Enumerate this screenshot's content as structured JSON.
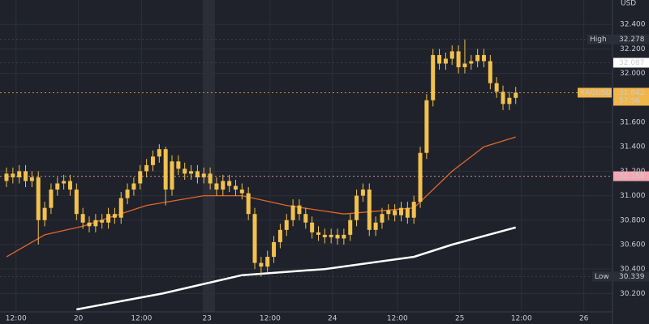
{
  "chart_data": {
    "type": "candlestick",
    "axis_unit": "USD",
    "candle_color": "#f2c14e",
    "xlim": [
      -1.02,
      95.2
    ],
    "ylim": [
      30.05,
      32.6
    ],
    "grid": true,
    "xticks": [
      {
        "value": 1.5,
        "label": "12:00"
      },
      {
        "value": 11.3,
        "label": "20"
      },
      {
        "value": 21.2,
        "label": "12:00"
      },
      {
        "value": 31.5,
        "label": "23"
      },
      {
        "value": 41.4,
        "label": "12:00"
      },
      {
        "value": 51.2,
        "label": "24"
      },
      {
        "value": 61.4,
        "label": "12:00"
      },
      {
        "value": 71.2,
        "label": "25"
      },
      {
        "value": 80.9,
        "label": "12:00"
      },
      {
        "value": 90.7,
        "label": "26"
      }
    ],
    "yticks": [
      {
        "value": 30.2,
        "label": "30.200"
      },
      {
        "value": 30.4,
        "label": "30.400"
      },
      {
        "value": 30.6,
        "label": "30.600"
      },
      {
        "value": 30.8,
        "label": "30.800"
      },
      {
        "value": 31.0,
        "label": "31.000"
      },
      {
        "value": 31.2,
        "label": "31.200"
      },
      {
        "value": 31.4,
        "label": "31.400"
      },
      {
        "value": 31.6,
        "label": "31.600"
      },
      {
        "value": 32.0,
        "label": "32.000"
      },
      {
        "value": 32.2,
        "label": "32.200"
      },
      {
        "value": 32.4,
        "label": "32.400"
      }
    ],
    "open": [
      31.12,
      31.18,
      31.15,
      31.2,
      31.12,
      31.15,
      30.8,
      30.9,
      31.05,
      31.1,
      31.12,
      31.05,
      30.85,
      30.78,
      30.75,
      30.8,
      30.78,
      30.85,
      30.82,
      30.98,
      31.05,
      31.1,
      31.2,
      31.25,
      31.32,
      31.38,
      31.05,
      31.28,
      31.22,
      31.18,
      31.2,
      31.15,
      31.18,
      31.1,
      31.05,
      31.12,
      31.08,
      31.05,
      31.02,
      30.85,
      30.45,
      30.42,
      30.5,
      30.62,
      30.72,
      30.8,
      30.92,
      30.85,
      30.78,
      30.7,
      30.68,
      30.66,
      30.68,
      30.65,
      30.68,
      30.8,
      31.0,
      31.05,
      30.72,
      30.78,
      30.85,
      30.88,
      30.84,
      30.9,
      30.82,
      30.95,
      31.35,
      31.78,
      32.15,
      32.08,
      32.12,
      32.18,
      32.05,
      32.08,
      32.1,
      32.15,
      32.1,
      31.92,
      31.85,
      31.75,
      31.8
    ],
    "high": [
      31.23,
      31.23,
      31.25,
      31.25,
      31.2,
      31.2,
      30.95,
      31.1,
      31.15,
      31.17,
      31.17,
      31.1,
      30.9,
      30.83,
      30.85,
      30.85,
      30.9,
      30.9,
      31.03,
      31.1,
      31.15,
      31.25,
      31.3,
      31.37,
      31.42,
      31.4,
      31.33,
      31.33,
      31.27,
      31.25,
      31.25,
      31.23,
      31.23,
      31.15,
      31.17,
      31.17,
      31.13,
      31.1,
      31.07,
      30.9,
      30.5,
      30.55,
      30.67,
      30.77,
      30.85,
      30.97,
      30.97,
      30.9,
      30.83,
      30.75,
      30.73,
      30.73,
      30.73,
      30.73,
      30.85,
      31.05,
      31.1,
      31.1,
      30.83,
      30.9,
      30.93,
      30.93,
      30.95,
      30.95,
      31.0,
      31.4,
      31.83,
      32.2,
      32.2,
      32.17,
      32.23,
      32.23,
      32.278,
      32.15,
      32.2,
      32.2,
      32.15,
      31.97,
      31.9,
      31.85,
      31.89
    ],
    "low": [
      31.07,
      31.1,
      31.1,
      31.07,
      31.07,
      30.6,
      30.75,
      30.85,
      31.0,
      31.05,
      31.0,
      30.8,
      30.73,
      30.7,
      30.7,
      30.73,
      30.73,
      30.77,
      30.77,
      30.93,
      31.0,
      31.05,
      31.15,
      31.2,
      31.27,
      30.92,
      31.0,
      31.17,
      31.13,
      31.13,
      31.1,
      31.1,
      31.05,
      31.0,
      31.0,
      31.03,
      31.0,
      30.97,
      30.8,
      30.4,
      30.339,
      30.37,
      30.45,
      30.57,
      30.67,
      30.75,
      30.8,
      30.73,
      30.65,
      30.63,
      30.61,
      30.61,
      30.6,
      30.6,
      30.63,
      30.75,
      30.95,
      30.67,
      30.67,
      30.73,
      30.8,
      30.79,
      30.79,
      30.77,
      30.77,
      30.9,
      31.3,
      31.73,
      32.03,
      32.03,
      32.07,
      32.0,
      32.0,
      32.03,
      32.05,
      32.05,
      31.87,
      31.8,
      31.7,
      31.7,
      31.75
    ],
    "close": [
      31.18,
      31.15,
      31.2,
      31.12,
      31.15,
      30.8,
      30.9,
      31.05,
      31.1,
      31.12,
      31.05,
      30.85,
      30.78,
      30.75,
      30.8,
      30.78,
      30.85,
      30.82,
      30.98,
      31.05,
      31.1,
      31.2,
      31.25,
      31.32,
      31.38,
      31.05,
      31.28,
      31.22,
      31.18,
      31.2,
      31.15,
      31.18,
      31.1,
      31.05,
      31.12,
      31.08,
      31.05,
      31.02,
      30.85,
      30.45,
      30.42,
      30.5,
      30.62,
      30.72,
      30.8,
      30.92,
      30.85,
      30.78,
      30.7,
      30.68,
      30.66,
      30.68,
      30.65,
      30.68,
      30.8,
      31.0,
      31.05,
      30.72,
      30.78,
      30.85,
      30.88,
      30.84,
      30.9,
      30.82,
      30.95,
      31.35,
      31.78,
      32.15,
      32.08,
      32.12,
      32.18,
      32.05,
      32.08,
      32.1,
      32.15,
      32.1,
      31.92,
      31.85,
      31.75,
      31.8,
      31.842
    ],
    "moving_averages": [
      {
        "color": "#e0662a",
        "x": [
          0,
          6,
          12,
          22,
          31,
          37,
          44,
          53,
          64,
          70,
          75,
          80
        ],
        "values": [
          30.5,
          30.68,
          30.75,
          30.92,
          31.0,
          31.0,
          30.92,
          30.85,
          30.9,
          31.2,
          31.4,
          31.48
        ]
      },
      {
        "color": "#ffffff",
        "x": [
          11,
          24.5,
          37,
          50,
          64,
          70,
          80
        ],
        "values": [
          30.07,
          30.2,
          30.35,
          30.4,
          30.5,
          30.6,
          30.74
        ]
      }
    ],
    "markers": [
      {
        "name": "High",
        "value": 32.278,
        "color": "#2a2e39",
        "text_color": "#e6e6e6",
        "line": "#3a3f4b"
      },
      {
        "value": 32.087,
        "color": "#ffffff",
        "text_color": "#111111",
        "line": "#3a3f4b"
      },
      {
        "name": "XAGUSD",
        "value": 31.842,
        "countdown": "57:56",
        "color": "#f0b64a",
        "text_color": "#111111",
        "line": "#c98a3a"
      },
      {
        "value": 31.159,
        "color": "#f3a7b2",
        "text_color": "#111111",
        "line": "#c98b93"
      },
      {
        "name": "Low",
        "value": 30.339,
        "color": "#2a2e39",
        "text_color": "#e6e6e6",
        "line": "#3a3f4b"
      }
    ]
  }
}
